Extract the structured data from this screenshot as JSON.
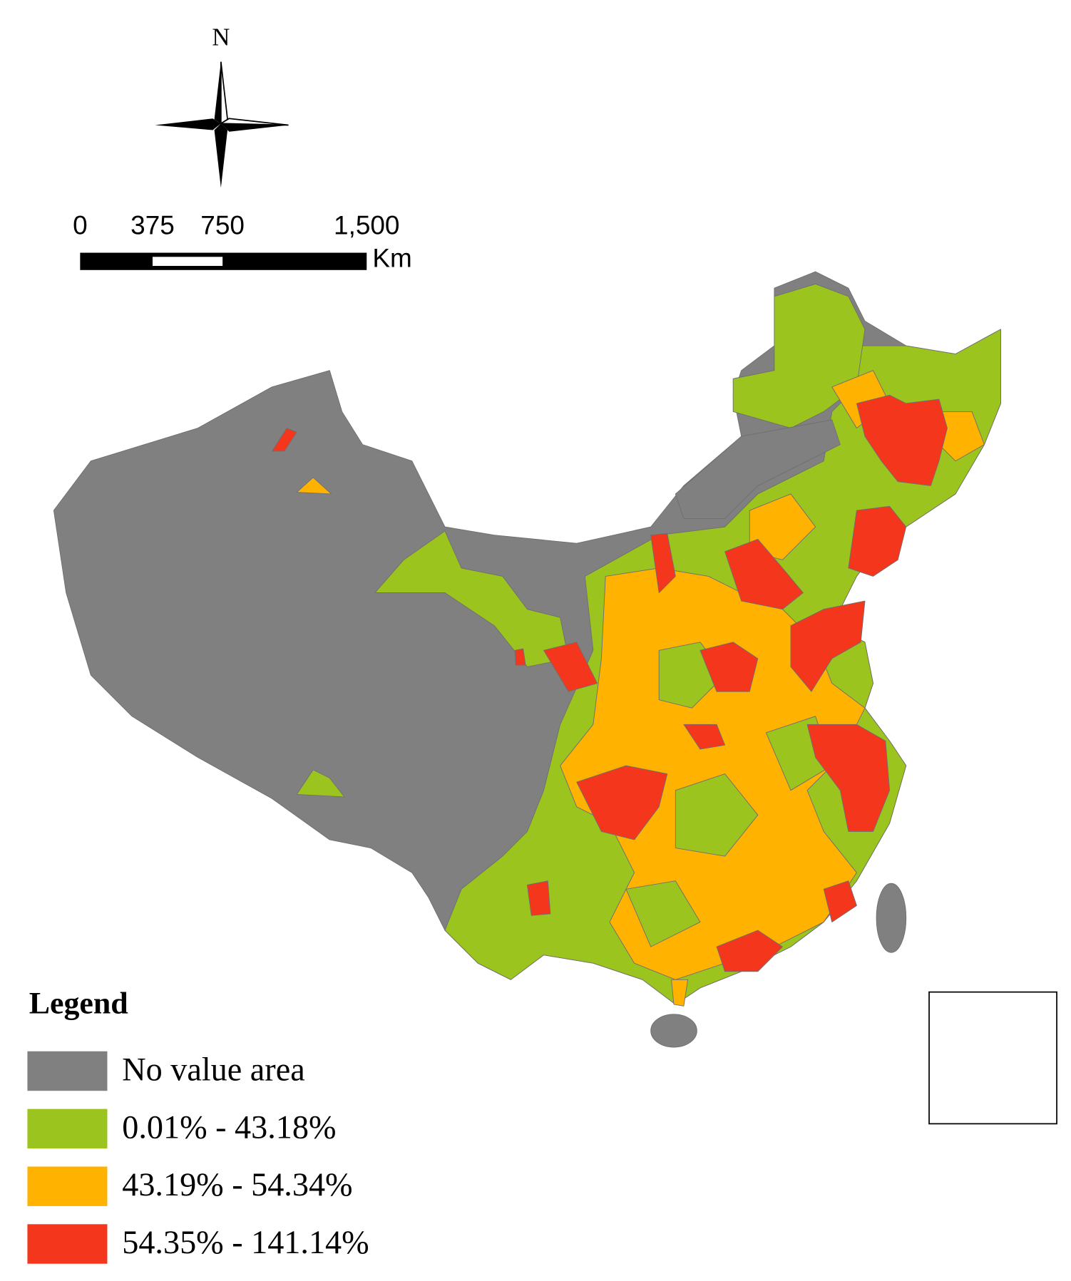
{
  "north_arrow": {
    "label": "N"
  },
  "scale_bar": {
    "labels": [
      "0",
      "375",
      "750",
      "1,500"
    ],
    "unit": "Km"
  },
  "legend": {
    "title": "Legend",
    "items": [
      {
        "label": "No value area",
        "color": "#808080"
      },
      {
        "label": "0.01% - 43.18%",
        "color": "#9bc41e"
      },
      {
        "label": "43.19% - 54.34%",
        "color": "#ffb300"
      },
      {
        "label": "54.35% - 141.14%",
        "color": "#f4361c"
      }
    ]
  }
}
